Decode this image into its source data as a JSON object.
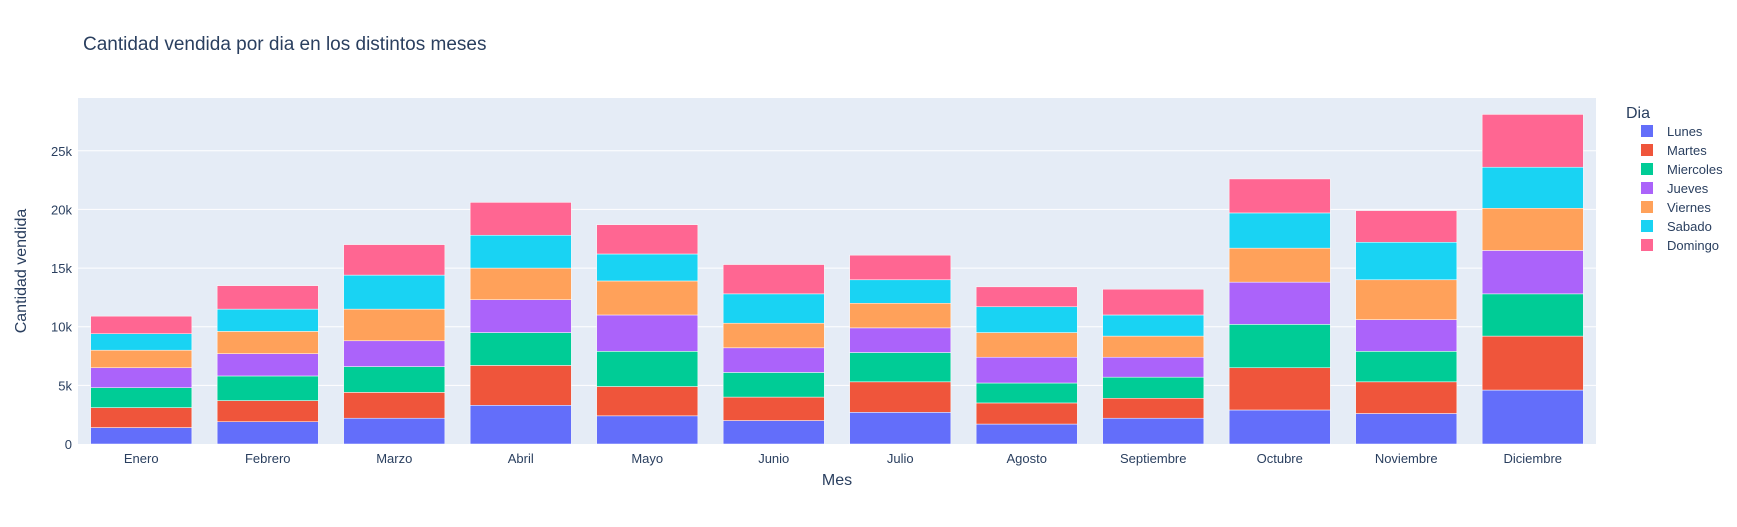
{
  "chart_data": {
    "type": "bar",
    "barmode": "stack",
    "title": "Cantidad vendida por dia en los distintos meses",
    "xlabel": "Mes",
    "ylabel": "Cantidad vendida",
    "ylim": [
      0,
      29500
    ],
    "yticks": [
      0,
      5000,
      10000,
      15000,
      20000,
      25000
    ],
    "ytick_labels": [
      "0",
      "5k",
      "10k",
      "15k",
      "20k",
      "25k"
    ],
    "grid": true,
    "legend_title": "Dia",
    "legend_position": "right",
    "categories": [
      "Enero",
      "Febrero",
      "Marzo",
      "Abril",
      "Mayo",
      "Junio",
      "Julio",
      "Agosto",
      "Septiembre",
      "Octubre",
      "Noviembre",
      "Diciembre"
    ],
    "series": [
      {
        "name": "Lunes",
        "color": "#636efa",
        "values": [
          1400,
          1900,
          2200,
          3300,
          2400,
          2000,
          2700,
          1700,
          2200,
          2900,
          2600,
          4600
        ]
      },
      {
        "name": "Martes",
        "color": "#EF553B",
        "values": [
          1700,
          1800,
          2200,
          3400,
          2500,
          2000,
          2600,
          1800,
          1700,
          3600,
          2700,
          4600
        ]
      },
      {
        "name": "Miercoles",
        "color": "#00cc96",
        "values": [
          1700,
          2100,
          2200,
          2800,
          3000,
          2100,
          2500,
          1700,
          1800,
          3700,
          2600,
          3600
        ]
      },
      {
        "name": "Jueves",
        "color": "#ab63fa",
        "values": [
          1700,
          1900,
          2200,
          2800,
          3100,
          2100,
          2100,
          2200,
          1700,
          3600,
          2700,
          3700
        ]
      },
      {
        "name": "Viernes",
        "color": "#FFA15A",
        "values": [
          1500,
          1900,
          2700,
          2700,
          2900,
          2100,
          2100,
          2100,
          1800,
          2900,
          3400,
          3600
        ]
      },
      {
        "name": "Sabado",
        "color": "#19d3f3",
        "values": [
          1400,
          1900,
          2900,
          2800,
          2300,
          2500,
          2000,
          2200,
          1800,
          3000,
          3200,
          3500
        ]
      },
      {
        "name": "Domingo",
        "color": "#FF6692",
        "values": [
          1500,
          2000,
          2600,
          2800,
          2500,
          2500,
          2100,
          1700,
          2200,
          2900,
          2700,
          4500
        ]
      }
    ]
  }
}
